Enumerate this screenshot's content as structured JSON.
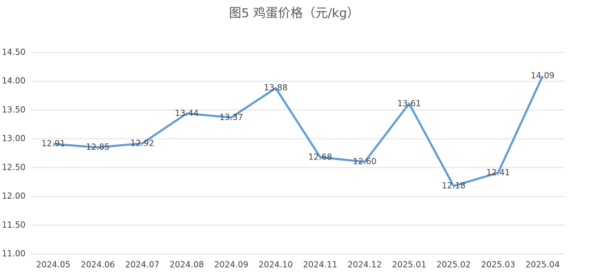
{
  "chart_data": {
    "type": "line",
    "title": "图5  鸡蛋价格（元/kg）",
    "categories": [
      "2024.05",
      "2024.06",
      "2024.07",
      "2024.08",
      "2024.09",
      "2024.10",
      "2024.11",
      "2024.12",
      "2025.01",
      "2025.02",
      "2025.03",
      "2025.04"
    ],
    "series": [
      {
        "color": "#5b9bd5",
        "values": [
          12.91,
          12.85,
          12.92,
          13.44,
          13.37,
          13.88,
          12.68,
          12.6,
          13.61,
          12.18,
          12.41,
          14.09
        ],
        "value_labels": [
          "12.91",
          "12.85",
          "12.92",
          "13.44",
          "13.37",
          "13.88",
          "12.68",
          "12.60",
          "13.61",
          "12.18",
          "12.41",
          "14.09"
        ]
      }
    ],
    "ylim": [
      11,
      14.5
    ],
    "yticks": [
      {
        "value": 11,
        "label": "11.00"
      },
      {
        "value": 11.5,
        "label": "11.50"
      },
      {
        "value": 12,
        "label": "12.00"
      },
      {
        "value": 12.5,
        "label": "12.50"
      },
      {
        "value": 13,
        "label": "13.00"
      },
      {
        "value": 13.5,
        "label": "13.50"
      },
      {
        "value": 14,
        "label": "14.00"
      },
      {
        "value": 14.5,
        "label": "14.50"
      }
    ],
    "grid": true
  }
}
